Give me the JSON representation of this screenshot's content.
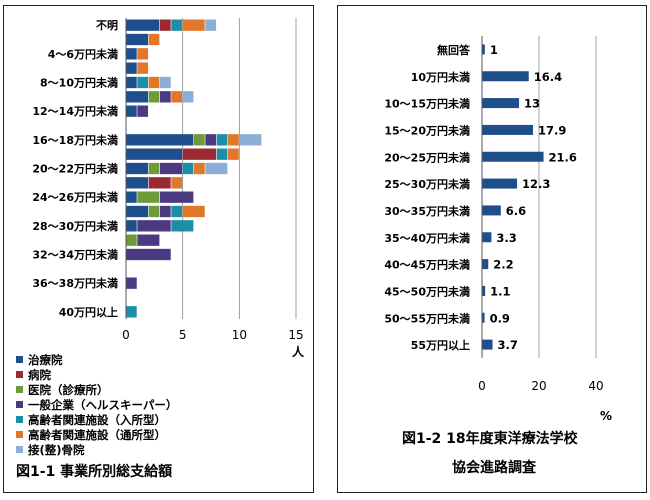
{
  "chart_data": [
    {
      "type": "bar",
      "orientation": "horizontal",
      "stacked": true,
      "caption": "図1-1 事業所別総支給額",
      "xunit": "人",
      "xlim": [
        0,
        15
      ],
      "xticks": [
        0,
        5,
        10,
        15
      ],
      "grid": true,
      "legend_position": "bottom-left",
      "categories": [
        "不明",
        "4〜6万円未満",
        "8〜10万円未満",
        "12〜14万円未満",
        "16〜18万円未満",
        "20〜22万円未満",
        "24〜26万円未満",
        "28〜30万円未満",
        "32〜34万円未満",
        "36〜38万円未満",
        "40万円以上"
      ],
      "row_ranges": [
        "不明",
        "",
        "4〜6万円未満",
        "",
        "8〜10万円未満",
        "",
        "12〜14万円未満",
        "",
        "16〜18万円未満",
        "",
        "20〜22万円未満",
        "",
        "24〜26万円未満",
        "",
        "28〜30万円未満",
        "",
        "32〜34万円未満",
        "",
        "36〜38万円未満",
        "",
        "40万円以上"
      ],
      "series": [
        {
          "name": "治療院",
          "color": "#1f4e8c"
        },
        {
          "name": "病院",
          "color": "#9b2a35"
        },
        {
          "name": "医院（診療所）",
          "color": "#6e9a3a"
        },
        {
          "name": "一般企業（ヘルスキーパー）",
          "color": "#4b3a82"
        },
        {
          "name": "高齢者関連施設（入所型）",
          "color": "#1b8fa8"
        },
        {
          "name": "高齢者関連施設（通所型）",
          "color": "#e2772a"
        },
        {
          "name": "接(整)骨院",
          "color": "#8aaed6"
        }
      ],
      "rows": [
        [
          3,
          1,
          0,
          0,
          1,
          2,
          1
        ],
        [
          2,
          0,
          0,
          0,
          0,
          1,
          0
        ],
        [
          1,
          0,
          0,
          0,
          0,
          1,
          0
        ],
        [
          1,
          0,
          0,
          0,
          0,
          1,
          0
        ],
        [
          1,
          0,
          0,
          0,
          1,
          1,
          1
        ],
        [
          2,
          0,
          1,
          1,
          0,
          1,
          1
        ],
        [
          1,
          0,
          0,
          1,
          0,
          0,
          0
        ],
        [
          0,
          0,
          0,
          0,
          0,
          0,
          0
        ],
        [
          6,
          0,
          1,
          1,
          1,
          1,
          2
        ],
        [
          5,
          3,
          0,
          0,
          1,
          1,
          0
        ],
        [
          2,
          0,
          1,
          2,
          1,
          1,
          2
        ],
        [
          2,
          2,
          0,
          0,
          0,
          1,
          0
        ],
        [
          1,
          0,
          2,
          3,
          0,
          0,
          0
        ],
        [
          2,
          0,
          1,
          1,
          1,
          2,
          0
        ],
        [
          1,
          0,
          0,
          3,
          2,
          0,
          0
        ],
        [
          0,
          0,
          1,
          2,
          0,
          0,
          0
        ],
        [
          0,
          0,
          0,
          4,
          0,
          0,
          0
        ],
        [
          0,
          0,
          0,
          0,
          0,
          0,
          0
        ],
        [
          0,
          0,
          0,
          1,
          0,
          0,
          0
        ],
        [
          0,
          0,
          0,
          0,
          0,
          0,
          0
        ],
        [
          0,
          0,
          0,
          0,
          1,
          0,
          0
        ]
      ]
    },
    {
      "type": "bar",
      "orientation": "horizontal",
      "caption": "図1-2 18年度東洋療法学校協会進路調査",
      "xunit": "%",
      "xlim": [
        0,
        40
      ],
      "xticks": [
        0,
        20,
        40
      ],
      "grid": true,
      "color": "#1f4e8c",
      "categories": [
        "無回答",
        "10万円未満",
        "10〜15万円未満",
        "15〜20万円未満",
        "20〜25万円未満",
        "25〜30万円未満",
        "30〜35万円未満",
        "35〜40万円未満",
        "40〜45万円未満",
        "45〜50万円未満",
        "50〜55万円未満",
        "55万円以上"
      ],
      "values": [
        1,
        16.4,
        13,
        17.9,
        21.6,
        12.3,
        6.6,
        3.3,
        2.2,
        1.1,
        0.9,
        3.7
      ],
      "value_labels": [
        "1",
        "16.4",
        "13",
        "17.9",
        "21.6",
        "12.3",
        "6.6",
        "3.3",
        "2.2",
        "1.1",
        "0.9",
        "3.7"
      ]
    }
  ]
}
